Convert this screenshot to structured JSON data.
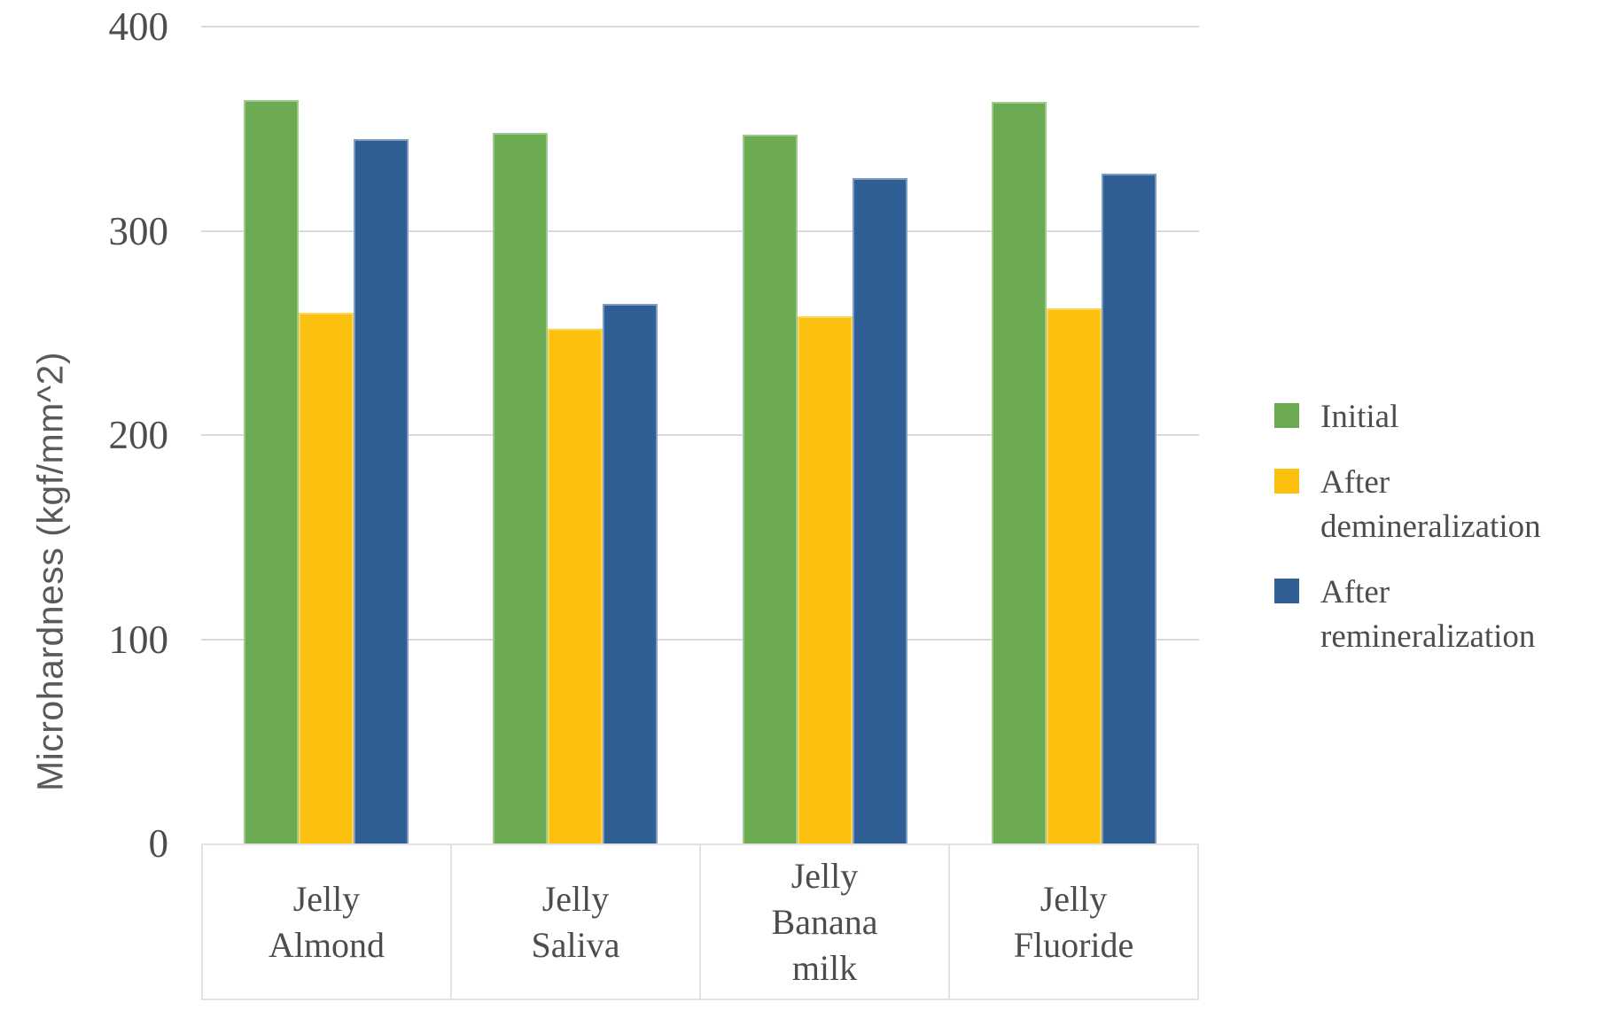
{
  "chart_data": {
    "type": "bar",
    "title": "",
    "ylabel": "Microhardness (kgf/mm^2)",
    "xlabel": "",
    "ylim": [
      0,
      400
    ],
    "yticks": [
      0,
      100,
      200,
      300,
      400
    ],
    "ytick_labels": [
      "0",
      "100",
      "200",
      "300",
      "400"
    ],
    "grid": "horizontal gridlines every 100",
    "legend_position": "right outside plot",
    "categories": [
      "Jelly Almond",
      "Jelly Saliva",
      "Jelly Banana milk",
      "Jelly Fluoride"
    ],
    "category_display": [
      "Jelly\nAlmond",
      "Jelly\nSaliva",
      "Jelly\nBanana\nmilk",
      "Jelly\nFluoride"
    ],
    "series": [
      {
        "name": "Initial",
        "color": "#6CAB51",
        "edge_color": "#9DC98C",
        "values": [
          364,
          348,
          347,
          363
        ]
      },
      {
        "name": "After demineralization",
        "color": "#FCC10E",
        "edge_color": "#FDD35C",
        "values": [
          260,
          252,
          258,
          262
        ]
      },
      {
        "name": "After remineralization",
        "color": "#2F5F95",
        "edge_color": "#7C9CC2",
        "values": [
          345,
          264,
          326,
          328
        ]
      }
    ],
    "colors": {
      "gridline": "#D9D9DE",
      "axis_text": "#4D4D4D",
      "axis_title_text": "#595959",
      "category_box_border": "#E2E2E6",
      "background": "#FFFFFF"
    }
  }
}
